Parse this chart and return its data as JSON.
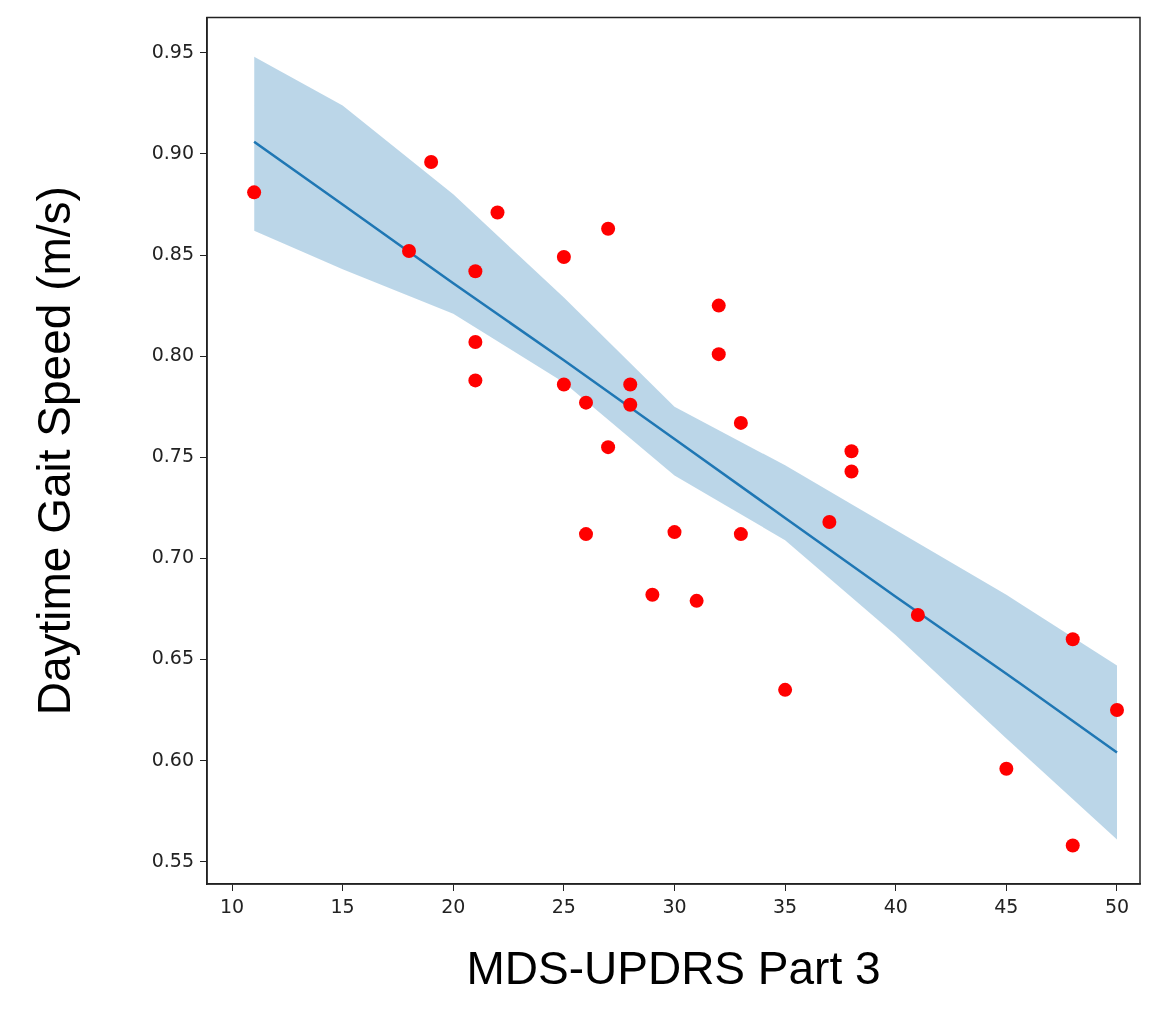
{
  "chart_data": {
    "type": "scatter",
    "xlabel": "MDS-UPDRS Part 3",
    "ylabel": "Daytime Gait Speed (m/s)",
    "xlim": [
      8.87,
      51.04
    ],
    "ylim": [
      0.539,
      0.9675
    ],
    "xticks": [
      10,
      15,
      20,
      25,
      30,
      35,
      40,
      45,
      50
    ],
    "yticks": [
      0.55,
      {
        "value": 0.6,
        "label": "0.60"
      },
      0.65,
      {
        "value": 0.7,
        "label": "0.70"
      },
      0.75,
      {
        "value": 0.8,
        "label": "0.80"
      },
      0.85,
      {
        "value": 0.9,
        "label": "0.90"
      },
      0.95
    ],
    "grid": false,
    "legend": false,
    "series": [
      {
        "type": "scatter",
        "color": "#ff0000",
        "marker": "circle",
        "x": [
          11,
          18,
          19,
          22,
          21,
          21,
          21,
          25,
          25,
          27,
          26,
          27,
          26,
          28,
          28,
          30,
          29,
          31,
          32,
          32,
          33,
          33,
          35,
          37,
          38,
          38,
          41,
          45,
          48,
          48,
          50
        ],
        "values": [
          0.881,
          0.852,
          0.896,
          0.871,
          0.842,
          0.807,
          0.788,
          0.849,
          0.786,
          0.863,
          0.777,
          0.755,
          0.712,
          0.786,
          0.776,
          0.713,
          0.682,
          0.679,
          0.825,
          0.801,
          0.767,
          0.712,
          0.635,
          0.718,
          0.753,
          0.743,
          0.672,
          0.596,
          0.66,
          0.558,
          0.625
        ]
      },
      {
        "type": "line",
        "color": "#1f77b4",
        "marker": "none",
        "line_style": "solid",
        "x": [
          11,
          15,
          20,
          25,
          30,
          35,
          40,
          45,
          50
        ],
        "values": [
          0.906,
          0.875,
          0.836,
          0.798,
          0.759,
          0.72,
          0.681,
          0.643,
          0.604
        ],
        "lower": [
          0.862,
          0.843,
          0.821,
          0.787,
          0.741,
          0.709,
          0.662,
          0.611,
          0.561
        ],
        "upper": [
          0.948,
          0.924,
          0.88,
          0.829,
          0.775,
          0.746,
          0.714,
          0.682,
          0.647
        ]
      }
    ]
  }
}
